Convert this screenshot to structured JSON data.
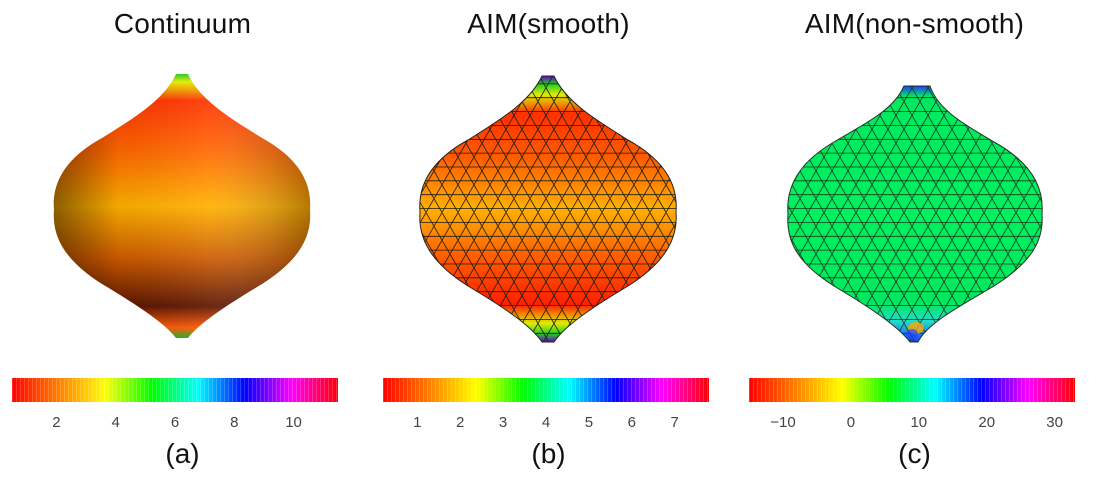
{
  "panels": [
    {
      "title": "Continuum",
      "caption": "(a)",
      "colorbar": {
        "min": 0.5,
        "max": 11.5,
        "ticks": [
          "2",
          "4",
          "6",
          "8",
          "10"
        ],
        "tick_values": [
          2,
          4,
          6,
          8,
          10
        ]
      },
      "mesh": false
    },
    {
      "title": "AIM(smooth)",
      "caption": "(b)",
      "colorbar": {
        "min": 0.2,
        "max": 7.8,
        "ticks": [
          "1",
          "2",
          "3",
          "4",
          "5",
          "6",
          "7"
        ],
        "tick_values": [
          1,
          2,
          3,
          4,
          5,
          6,
          7
        ]
      },
      "mesh": true
    },
    {
      "title": "AIM(non-smooth)",
      "caption": "(c)",
      "colorbar": {
        "min": -15,
        "max": 33,
        "ticks": [
          "−10",
          "0",
          "10",
          "20",
          "30"
        ],
        "tick_values": [
          -10,
          0,
          10,
          20,
          30
        ]
      },
      "mesh": true
    }
  ],
  "colorbar_colors": [
    "#ff0000",
    "#ff8000",
    "#ffff00",
    "#00ff00",
    "#00ffff",
    "#0000ff",
    "#ff00ff",
    "#ff0000"
  ]
}
